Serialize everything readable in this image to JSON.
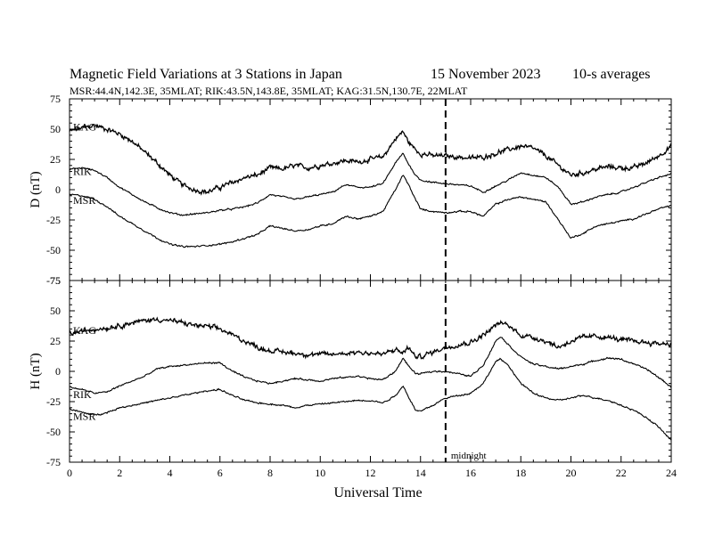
{
  "header": {
    "title": "Magnetic Field Variations at 3 Stations in Japan",
    "date": "15 November 2023",
    "averaging": "10-s averages",
    "stations_line": "MSR:44.4N,142.3E, 35MLAT;  RIK:43.5N,143.8E, 35MLAT;  KAG:31.5N,130.7E, 22MLAT"
  },
  "chart_data": [
    {
      "type": "line",
      "ylabel": "D (nT)",
      "xlabel": "",
      "xlim": [
        0,
        24
      ],
      "ylim": [
        -75,
        75
      ],
      "yticks": [
        -75,
        -50,
        -25,
        0,
        25,
        50,
        75
      ],
      "noise_color": "#000000",
      "series": [
        {
          "name": "KAG",
          "noise": 1.8,
          "x": [
            0,
            0.5,
            1,
            1.5,
            2,
            2.5,
            3,
            3.5,
            4,
            4.5,
            5,
            5.5,
            6,
            6.5,
            7,
            7.5,
            8,
            8.5,
            9,
            9.5,
            10,
            10.5,
            11,
            11.5,
            12,
            12.5,
            13,
            13.3,
            13.5,
            13.8,
            14,
            14.5,
            15,
            15.5,
            16,
            16.5,
            17,
            17.5,
            18,
            18.5,
            19,
            19.5,
            20,
            20.5,
            21,
            21.5,
            22,
            22.5,
            23,
            23.5,
            24
          ],
          "y": [
            48,
            51,
            53,
            50,
            46,
            40,
            31,
            22,
            12,
            4,
            0,
            -2,
            2,
            6,
            10,
            12,
            18,
            17,
            20,
            18,
            20,
            22,
            24,
            23,
            25,
            27,
            42,
            48,
            40,
            33,
            30,
            28,
            28,
            27,
            26,
            27,
            30,
            33,
            36,
            34,
            28,
            20,
            12,
            14,
            17,
            19,
            18,
            18,
            22,
            28,
            36
          ]
        },
        {
          "name": "RIK",
          "noise": 0.6,
          "x": [
            0,
            0.5,
            1,
            1.5,
            2,
            2.5,
            3,
            3.5,
            4,
            4.5,
            5,
            5.5,
            6,
            6.5,
            7,
            7.5,
            8,
            8.5,
            9,
            9.5,
            10,
            10.5,
            11,
            11.5,
            12,
            12.5,
            13,
            13.3,
            13.5,
            13.8,
            14,
            14.5,
            15,
            15.5,
            16,
            16.5,
            17,
            17.5,
            18,
            18.5,
            19,
            19.5,
            20,
            20.5,
            21,
            21.5,
            22,
            22.5,
            23,
            23.5,
            24
          ],
          "y": [
            17,
            18,
            16,
            10,
            2,
            -4,
            -10,
            -15,
            -19,
            -21,
            -20,
            -19,
            -17,
            -16,
            -14,
            -11,
            -4,
            -6,
            -8,
            -6,
            -4,
            -2,
            4,
            2,
            2,
            5,
            22,
            30,
            22,
            12,
            8,
            6,
            5,
            4,
            3,
            -2,
            3,
            8,
            14,
            12,
            10,
            2,
            -12,
            -10,
            -6,
            -4,
            -2,
            2,
            6,
            10,
            13
          ]
        },
        {
          "name": "MSR",
          "noise": 0.6,
          "x": [
            0,
            0.5,
            1,
            1.5,
            2,
            2.5,
            3,
            3.5,
            4,
            4.5,
            5,
            5.5,
            6,
            6.5,
            7,
            7.5,
            8,
            8.5,
            9,
            9.5,
            10,
            10.5,
            11,
            11.5,
            12,
            12.5,
            13,
            13.3,
            13.5,
            13.8,
            14,
            14.5,
            15,
            15.5,
            16,
            16.5,
            17,
            17.5,
            18,
            18.5,
            19,
            19.5,
            20,
            20.5,
            21,
            21.5,
            22,
            22.5,
            23,
            23.5,
            24
          ],
          "y": [
            -4,
            -5,
            -8,
            -14,
            -22,
            -28,
            -34,
            -40,
            -45,
            -47,
            -47,
            -46,
            -45,
            -43,
            -40,
            -37,
            -30,
            -32,
            -34,
            -33,
            -30,
            -28,
            -22,
            -24,
            -22,
            -18,
            0,
            12,
            5,
            -8,
            -16,
            -18,
            -19,
            -18,
            -18,
            -22,
            -12,
            -8,
            -6,
            -8,
            -10,
            -25,
            -40,
            -36,
            -30,
            -28,
            -26,
            -24,
            -20,
            -16,
            -13
          ]
        }
      ]
    },
    {
      "type": "line",
      "ylabel": "H (nT)",
      "xlabel": "Universal Time",
      "xlim": [
        0,
        24
      ],
      "xticks": [
        0,
        2,
        4,
        6,
        8,
        10,
        12,
        14,
        16,
        18,
        20,
        22,
        24
      ],
      "ylim": [
        -75,
        75
      ],
      "yticks": [
        -75,
        -50,
        -25,
        0,
        25,
        50,
        75
      ],
      "series": [
        {
          "name": "KAG",
          "noise": 1.8,
          "x": [
            0,
            0.5,
            1,
            1.5,
            2,
            2.5,
            3,
            3.5,
            4,
            4.5,
            5,
            5.5,
            6,
            6.5,
            7,
            7.5,
            8,
            8.5,
            9,
            9.5,
            10,
            10.5,
            11,
            11.5,
            12,
            12.5,
            13,
            13.3,
            13.5,
            13.8,
            14,
            14.5,
            15,
            15.5,
            16,
            16.5,
            17,
            17.2,
            17.5,
            18,
            18.5,
            19,
            19.5,
            20,
            20.5,
            21,
            21.5,
            22,
            22.5,
            23,
            23.5,
            24
          ],
          "y": [
            31,
            33,
            35,
            36,
            38,
            40,
            42,
            43,
            42,
            40,
            38,
            37,
            35,
            30,
            25,
            20,
            17,
            16,
            15,
            14,
            14,
            14,
            15,
            16,
            15,
            14,
            18,
            15,
            20,
            12,
            12,
            16,
            20,
            22,
            24,
            30,
            38,
            40,
            38,
            30,
            28,
            25,
            20,
            25,
            28,
            29,
            28,
            26,
            25,
            24,
            23,
            23
          ]
        },
        {
          "name": "RIK",
          "noise": 0.6,
          "x": [
            0,
            0.5,
            1,
            1.5,
            2,
            2.5,
            3,
            3.5,
            4,
            4.5,
            5,
            5.5,
            6,
            6.5,
            7,
            7.5,
            8,
            8.5,
            9,
            9.5,
            10,
            10.5,
            11,
            11.5,
            12,
            12.5,
            13,
            13.3,
            13.5,
            13.8,
            14,
            14.5,
            15,
            15.5,
            16,
            16.5,
            17,
            17.2,
            17.5,
            18,
            18.5,
            19,
            19.5,
            20,
            20.5,
            21,
            21.5,
            22,
            22.5,
            23,
            23.5,
            24
          ],
          "y": [
            -13,
            -15,
            -18,
            -17,
            -12,
            -8,
            -4,
            2,
            4,
            5,
            6,
            7,
            7,
            0,
            -5,
            -8,
            -10,
            -8,
            -6,
            -7,
            -8,
            -6,
            -5,
            -4,
            -6,
            -7,
            0,
            11,
            5,
            -2,
            -2,
            0,
            0,
            -2,
            -4,
            5,
            25,
            29,
            22,
            12,
            6,
            4,
            2,
            4,
            6,
            9,
            11,
            10,
            6,
            2,
            -5,
            -13
          ]
        },
        {
          "name": "MSR",
          "noise": 0.6,
          "x": [
            0,
            0.5,
            1,
            1.5,
            2,
            2.5,
            3,
            3.5,
            4,
            4.5,
            5,
            5.5,
            6,
            6.5,
            7,
            7.5,
            8,
            8.5,
            9,
            9.5,
            10,
            10.5,
            11,
            11.5,
            12,
            12.5,
            13,
            13.3,
            13.5,
            13.8,
            14,
            14.5,
            15,
            15.5,
            16,
            16.5,
            17,
            17.2,
            17.5,
            18,
            18.5,
            19,
            19.5,
            20,
            20.5,
            21,
            21.5,
            22,
            22.5,
            23,
            23.5,
            24
          ],
          "y": [
            -31,
            -34,
            -36,
            -34,
            -30,
            -28,
            -26,
            -24,
            -22,
            -20,
            -18,
            -16,
            -15,
            -20,
            -24,
            -26,
            -27,
            -28,
            -30,
            -28,
            -27,
            -26,
            -25,
            -24,
            -24,
            -26,
            -20,
            -12,
            -20,
            -32,
            -33,
            -28,
            -22,
            -20,
            -18,
            -10,
            8,
            10,
            5,
            -10,
            -18,
            -22,
            -24,
            -22,
            -20,
            -22,
            -24,
            -28,
            -32,
            -38,
            -46,
            -57
          ]
        }
      ]
    }
  ],
  "annotations": {
    "midnight_hour": 15,
    "midnight_label": "midnight"
  }
}
